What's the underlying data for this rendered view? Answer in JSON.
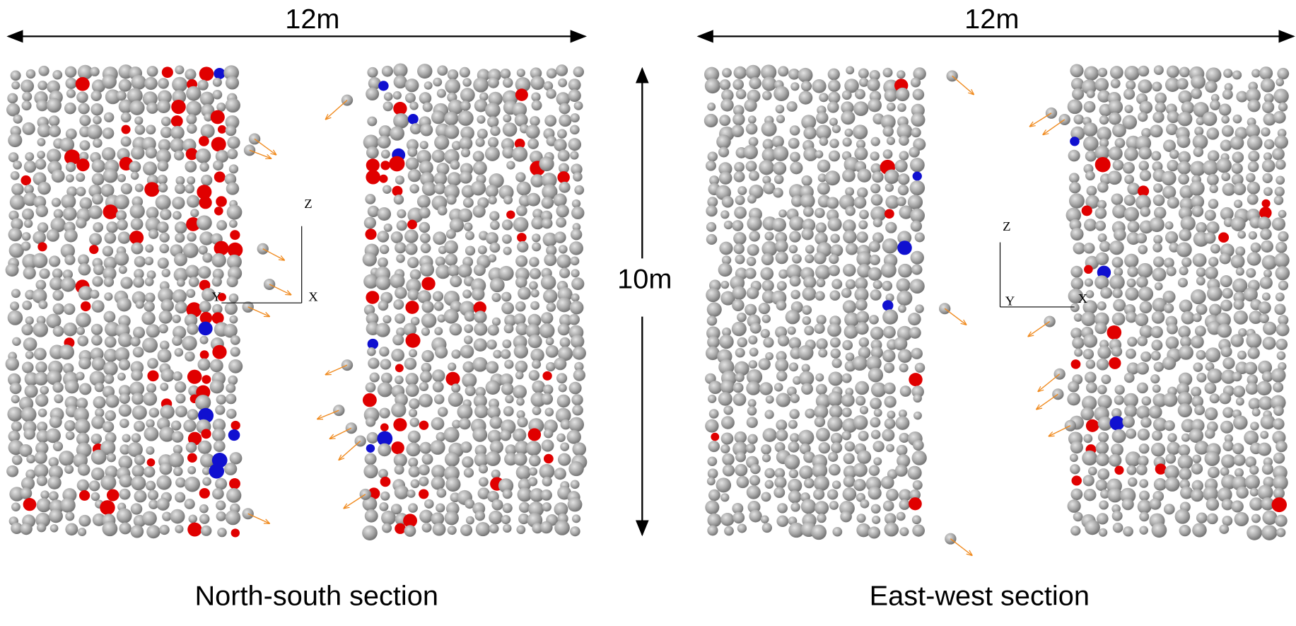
{
  "height_label": "10m",
  "panels": [
    {
      "width_label": "12m",
      "caption": "North-south section",
      "axes": {
        "z": "Z",
        "y": "Y",
        "x": "X"
      }
    },
    {
      "width_label": "12m",
      "caption": "East-west section",
      "axes": {
        "z": "Z",
        "y": "Y",
        "x": "X"
      }
    }
  ]
}
